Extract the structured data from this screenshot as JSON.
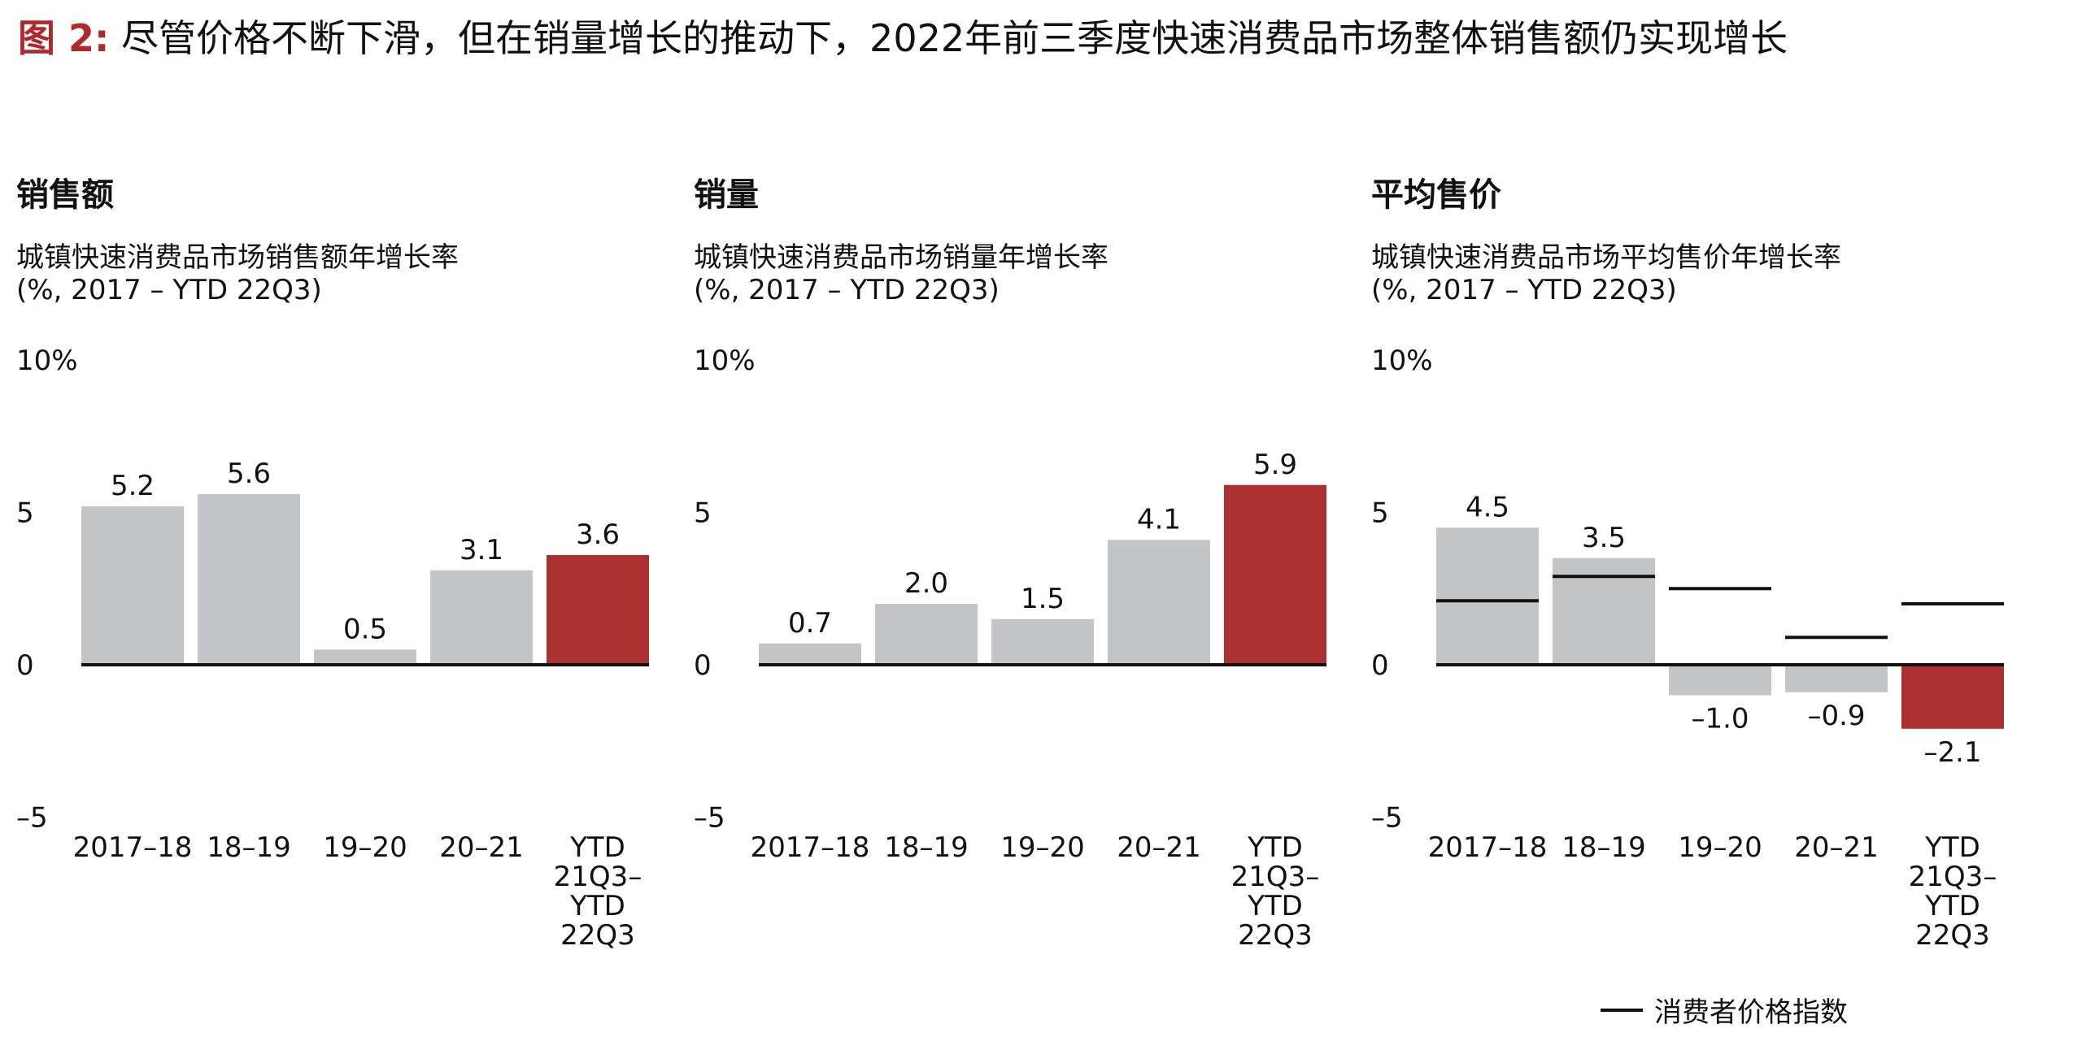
{
  "title": {
    "label": "图 2:",
    "text": "尽管价格不断下滑，但在销量增长的推动下，2022年前三季度快速消费品市场整体销售额仍实现增长"
  },
  "legend": {
    "cpi_label": "消费者价格指数"
  },
  "colors": {
    "bar_gray": "#c4c5c7",
    "bar_red": "#ad3031",
    "zero_line": "#111111",
    "title_red": "#b0282c"
  },
  "chart_data": [
    {
      "type": "bar",
      "title": "销售额",
      "subtitle": [
        "城镇快速消费品市场销售额年增长率",
        "(%, 2017 – YTD 22Q3)"
      ],
      "categories": [
        "2017–18",
        "18–19",
        "19–20",
        "20–21",
        "YTD 21Q3– YTD 22Q3"
      ],
      "category_lines": [
        [
          "2017–18"
        ],
        [
          "18–19"
        ],
        [
          "19–20"
        ],
        [
          "20–21"
        ],
        [
          "YTD",
          "21Q3–",
          "YTD",
          "22Q3"
        ]
      ],
      "values": [
        5.2,
        5.6,
        0.5,
        3.1,
        3.6
      ],
      "labels": [
        "5.2",
        "5.6",
        "0.5",
        "3.1",
        "3.6"
      ],
      "highlight_index": 4,
      "y_ticks": [
        "10%",
        "5",
        "0",
        "–5"
      ],
      "ylim": [
        -5,
        10
      ]
    },
    {
      "type": "bar",
      "title": "销量",
      "subtitle": [
        "城镇快速消费品市场销量年增长率",
        "(%, 2017 – YTD 22Q3)"
      ],
      "categories": [
        "2017–18",
        "18–19",
        "19–20",
        "20–21",
        "YTD 21Q3– YTD 22Q3"
      ],
      "category_lines": [
        [
          "2017–18"
        ],
        [
          "18–19"
        ],
        [
          "19–20"
        ],
        [
          "20–21"
        ],
        [
          "YTD",
          "21Q3–",
          "YTD",
          "22Q3"
        ]
      ],
      "values": [
        0.7,
        2.0,
        1.5,
        4.1,
        5.9
      ],
      "labels": [
        "0.7",
        "2.0",
        "1.5",
        "4.1",
        "5.9"
      ],
      "highlight_index": 4,
      "y_ticks": [
        "10%",
        "5",
        "0",
        "–5"
      ],
      "ylim": [
        -5,
        10
      ]
    },
    {
      "type": "bar",
      "title": "平均售价",
      "subtitle": [
        "城镇快速消费品市场平均售价年增长率",
        "(%, 2017 – YTD 22Q3)"
      ],
      "categories": [
        "2017–18",
        "18–19",
        "19–20",
        "20–21",
        "YTD 21Q3– YTD 22Q3"
      ],
      "category_lines": [
        [
          "2017–18"
        ],
        [
          "18–19"
        ],
        [
          "19–20"
        ],
        [
          "20–21"
        ],
        [
          "YTD",
          "21Q3–",
          "YTD",
          "22Q3"
        ]
      ],
      "values": [
        4.5,
        3.5,
        -1.0,
        -0.9,
        -2.1
      ],
      "labels": [
        "4.5",
        "3.5",
        "–1.0",
        "–0.9",
        "–2.1"
      ],
      "highlight_index": 4,
      "cpi": [
        2.1,
        2.9,
        2.5,
        0.9,
        2.0
      ],
      "y_ticks": [
        "10%",
        "5",
        "0",
        "–5"
      ],
      "ylim": [
        -5,
        10
      ]
    }
  ]
}
